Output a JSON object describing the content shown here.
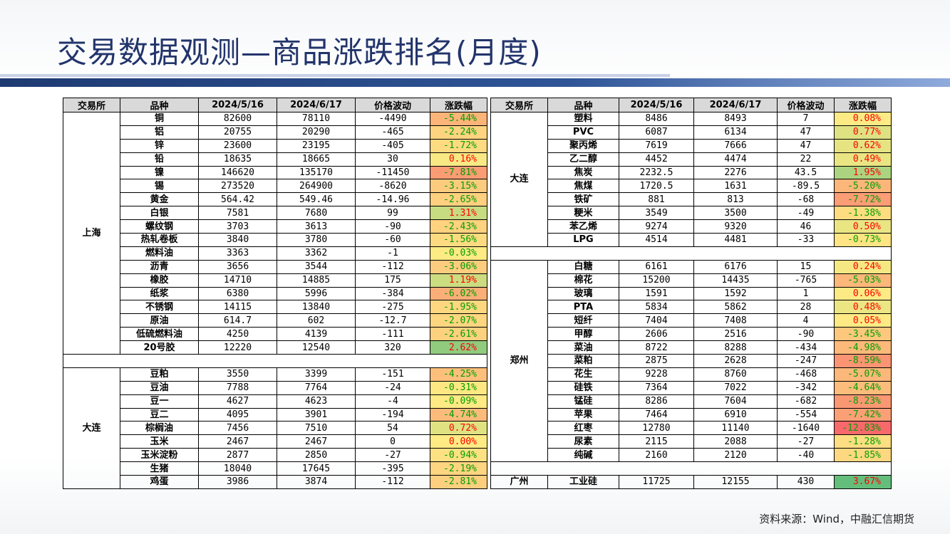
{
  "title": "交易数据观测—商品涨跌排名(月度)",
  "source": "资料来源：Wind，中融汇信期货",
  "headers": [
    "交易所",
    "品种",
    "2024/5/16",
    "2024/6/17",
    "价格波动",
    "涨跌幅"
  ],
  "left_table": [
    {
      "exchange": "上海",
      "rows": [
        [
          "铜",
          "82600",
          "78110",
          "-4490",
          "-5.44%"
        ],
        [
          "铝",
          "20755",
          "20290",
          "-465",
          "-2.24%"
        ],
        [
          "锌",
          "23600",
          "23195",
          "-405",
          "-1.72%"
        ],
        [
          "铅",
          "18635",
          "18665",
          "30",
          "0.16%"
        ],
        [
          "镍",
          "146620",
          "135170",
          "-11450",
          "-7.81%"
        ],
        [
          "锡",
          "273520",
          "264900",
          "-8620",
          "-3.15%"
        ],
        [
          "黄金",
          "564.42",
          "549.46",
          "-14.96",
          "-2.65%"
        ],
        [
          "白银",
          "7581",
          "7680",
          "99",
          "1.31%"
        ],
        [
          "螺纹钢",
          "3703",
          "3613",
          "-90",
          "-2.43%"
        ],
        [
          "热轧卷板",
          "3840",
          "3780",
          "-60",
          "-1.56%"
        ],
        [
          "燃料油",
          "3363",
          "3362",
          "-1",
          "-0.03%"
        ],
        [
          "沥青",
          "3656",
          "3544",
          "-112",
          "-3.06%"
        ],
        [
          "橡胶",
          "14710",
          "14885",
          "175",
          "1.19%"
        ],
        [
          "纸浆",
          "6380",
          "5996",
          "-384",
          "-6.02%"
        ],
        [
          "不锈钢",
          "14115",
          "13840",
          "-275",
          "-1.95%"
        ],
        [
          "原油",
          "614.7",
          "602",
          "-12.7",
          "-2.07%"
        ],
        [
          "低硫燃料油",
          "4250",
          "4139",
          "-111",
          "-2.61%"
        ],
        [
          "20号胶",
          "12220",
          "12540",
          "320",
          "2.62%"
        ]
      ]
    },
    {
      "exchange": "大连",
      "rows": [
        [
          "豆粕",
          "3550",
          "3399",
          "-151",
          "-4.25%"
        ],
        [
          "豆油",
          "7788",
          "7764",
          "-24",
          "-0.31%"
        ],
        [
          "豆一",
          "4627",
          "4623",
          "-4",
          "-0.09%"
        ],
        [
          "豆二",
          "4095",
          "3901",
          "-194",
          "-4.74%"
        ],
        [
          "棕榈油",
          "7456",
          "7510",
          "54",
          "0.72%"
        ],
        [
          "玉米",
          "2467",
          "2467",
          "0",
          "0.00%"
        ],
        [
          "玉米淀粉",
          "2877",
          "2850",
          "-27",
          "-0.94%"
        ],
        [
          "生猪",
          "18040",
          "17645",
          "-395",
          "-2.19%"
        ],
        [
          "鸡蛋",
          "3986",
          "3874",
          "-112",
          "-2.81%"
        ]
      ]
    }
  ],
  "right_table": [
    {
      "exchange": "大连",
      "rows": [
        [
          "塑料",
          "8486",
          "8493",
          "7",
          "0.08%"
        ],
        [
          "PVC",
          "6087",
          "6134",
          "47",
          "0.77%"
        ],
        [
          "聚丙烯",
          "7619",
          "7666",
          "47",
          "0.62%"
        ],
        [
          "乙二醇",
          "4452",
          "4474",
          "22",
          "0.49%"
        ],
        [
          "焦炭",
          "2232.5",
          "2276",
          "43.5",
          "1.95%"
        ],
        [
          "焦煤",
          "1720.5",
          "1631",
          "-89.5",
          "-5.20%"
        ],
        [
          "铁矿",
          "881",
          "813",
          "-68",
          "-7.72%"
        ],
        [
          "粳米",
          "3549",
          "3500",
          "-49",
          "-1.38%"
        ],
        [
          "苯乙烯",
          "9274",
          "9320",
          "46",
          "0.50%"
        ],
        [
          "LPG",
          "4514",
          "4481",
          "-33",
          "-0.73%"
        ]
      ]
    },
    {
      "exchange": "郑州",
      "rows": [
        [
          "白糖",
          "6161",
          "6176",
          "15",
          "0.24%"
        ],
        [
          "棉花",
          "15200",
          "14435",
          "-765",
          "-5.03%"
        ],
        [
          "玻璃",
          "1591",
          "1592",
          "1",
          "0.06%"
        ],
        [
          "PTA",
          "5834",
          "5862",
          "28",
          "0.48%"
        ],
        [
          "短纤",
          "7404",
          "7408",
          "4",
          "0.05%"
        ],
        [
          "甲醇",
          "2606",
          "2516",
          "-90",
          "-3.45%"
        ],
        [
          "菜油",
          "8722",
          "8288",
          "-434",
          "-4.98%"
        ],
        [
          "菜粕",
          "2875",
          "2628",
          "-247",
          "-8.59%"
        ],
        [
          "花生",
          "9228",
          "8760",
          "-468",
          "-5.07%"
        ],
        [
          "硅铁",
          "7364",
          "7022",
          "-342",
          "-4.64%"
        ],
        [
          "锰硅",
          "8286",
          "7604",
          "-682",
          "-8.23%"
        ],
        [
          "苹果",
          "7464",
          "6910",
          "-554",
          "-7.42%"
        ],
        [
          "红枣",
          "12780",
          "11140",
          "-1640",
          "-12.83%"
        ],
        [
          "尿素",
          "2115",
          "2088",
          "-27",
          "-1.28%"
        ],
        [
          "纯碱",
          "2160",
          "2120",
          "-40",
          "-1.85%"
        ]
      ]
    },
    {
      "exchange": "广州",
      "rows": [
        [
          "工业硅",
          "11725",
          "12155",
          "430",
          "3.67%"
        ]
      ]
    }
  ]
}
